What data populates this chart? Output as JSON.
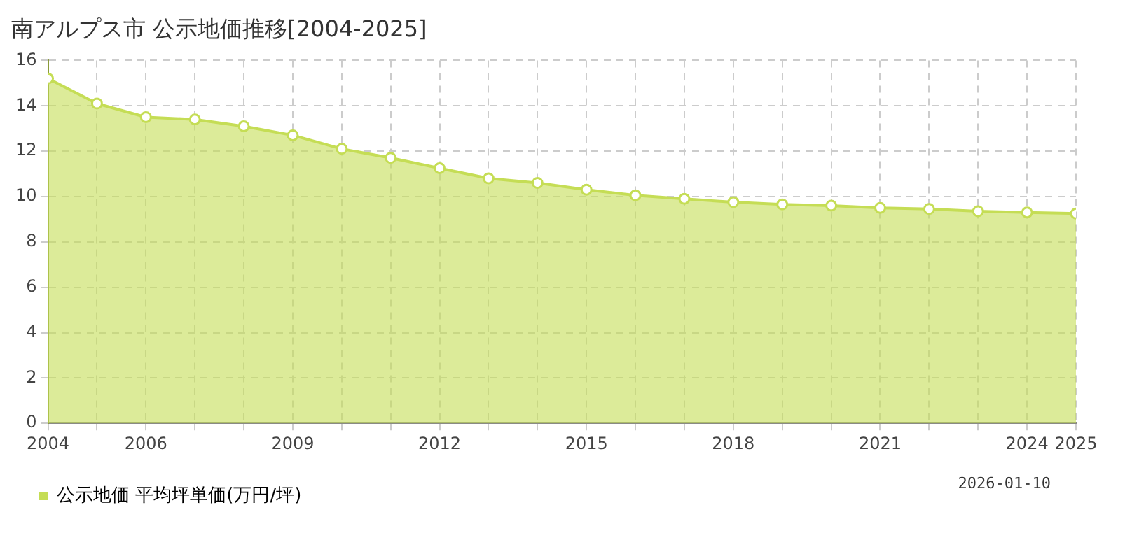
{
  "chart_data": {
    "type": "area",
    "title": "南アルプス市 公示地価推移[2004-2025]",
    "x": [
      2004,
      2005,
      2006,
      2007,
      2008,
      2009,
      2010,
      2011,
      2012,
      2013,
      2014,
      2015,
      2016,
      2017,
      2018,
      2019,
      2020,
      2021,
      2022,
      2023,
      2024,
      2025
    ],
    "series": [
      {
        "name": "公示地価 平均坪単価(万円/坪)",
        "color": "#c5dd55",
        "values": [
          15.2,
          14.1,
          13.5,
          13.4,
          13.1,
          12.7,
          12.1,
          11.7,
          11.25,
          10.8,
          10.6,
          10.3,
          10.05,
          9.9,
          9.75,
          9.65,
          9.6,
          9.5,
          9.45,
          9.35,
          9.3,
          9.25
        ]
      }
    ],
    "xlim": [
      2004,
      2025
    ],
    "xticks": [
      2004,
      {
        "value": 2005,
        "label": null
      },
      2006,
      {
        "value": 2007,
        "label": null
      },
      {
        "value": 2008,
        "label": null
      },
      2009,
      {
        "value": 2010,
        "label": null
      },
      {
        "value": 2011,
        "label": null
      },
      2012,
      {
        "value": 2013,
        "label": null
      },
      {
        "value": 2014,
        "label": null
      },
      2015,
      {
        "value": 2016,
        "label": null
      },
      {
        "value": 2017,
        "label": null
      },
      2018,
      {
        "value": 2019,
        "label": null
      },
      {
        "value": 2020,
        "label": null
      },
      2021,
      {
        "value": 2022,
        "label": null
      },
      {
        "value": 2023,
        "label": null
      },
      2024,
      2025
    ],
    "ylim": [
      0,
      16
    ],
    "yticks": [
      0,
      2,
      4,
      6,
      8,
      10,
      12,
      14,
      16
    ],
    "grid": true,
    "legend": "bottom left",
    "marker": "circle",
    "annotations": [
      "2026-01-10"
    ]
  }
}
